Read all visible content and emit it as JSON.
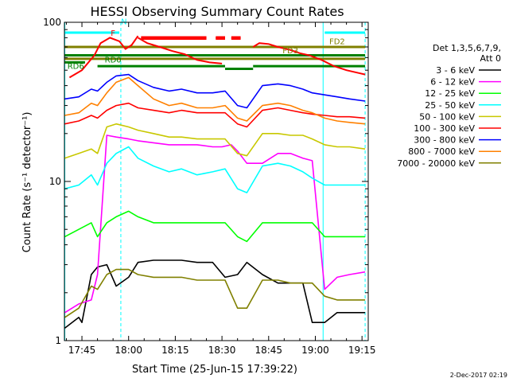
{
  "chart_data": {
    "type": "line",
    "title": "HESSI Observing Summary Count Rates",
    "xlabel": "Start Time (25-Jun-15 17:39:22)",
    "ylabel": "Count Rate (s⁻¹ detector⁻¹)",
    "yscale": "log",
    "ylim": [
      1,
      100
    ],
    "xlim_minutes_since_1730": [
      9.37,
      107
    ],
    "x_ticks": [
      {
        "label": "17:45",
        "minutes_since_1730": 15
      },
      {
        "label": "18:00",
        "minutes_since_1730": 30
      },
      {
        "label": "18:15",
        "minutes_since_1730": 45
      },
      {
        "label": "18:30",
        "minutes_since_1730": 60
      },
      {
        "label": "18:45",
        "minutes_since_1730": 75
      },
      {
        "label": "19:00",
        "minutes_since_1730": 90
      },
      {
        "label": "19:15",
        "minutes_since_1730": 105
      }
    ],
    "y_ticks": [
      {
        "label": "1",
        "value": 1
      },
      {
        "label": "10",
        "value": 10
      },
      {
        "label": "100",
        "value": 100
      }
    ],
    "legend_position": "right",
    "legend_header": [
      "Det 1,3,5,6,7,9,",
      "Att 0"
    ],
    "series": [
      {
        "name": "3 - 6 keV",
        "color": "#000000",
        "x": [
          9.5,
          14,
          15,
          18,
          20,
          23,
          26,
          30,
          33,
          38,
          43,
          47,
          52,
          57,
          61,
          65,
          68,
          73,
          78,
          82,
          86,
          89,
          93,
          97,
          101,
          106
        ],
        "y": [
          1.2,
          1.4,
          1.3,
          2.6,
          2.9,
          3,
          2.2,
          2.5,
          3.1,
          3.2,
          3.2,
          3.2,
          3.1,
          3.1,
          2.5,
          2.6,
          3.1,
          2.6,
          2.3,
          2.3,
          2.3,
          1.3,
          1.3,
          1.5,
          1.5,
          1.5
        ]
      },
      {
        "name": "6 - 12 keV",
        "color": "#ff00ff",
        "x": [
          9.5,
          14,
          18,
          20,
          23,
          26,
          30,
          33,
          38,
          43,
          47,
          52,
          57,
          60,
          63,
          65,
          68,
          73,
          78,
          82,
          86,
          89,
          93,
          97,
          101,
          106
        ],
        "y": [
          1.5,
          1.7,
          1.8,
          2.6,
          19.5,
          19,
          18.5,
          18,
          17.5,
          17,
          17,
          17,
          16.5,
          16.5,
          17,
          15.5,
          13,
          13,
          15,
          15,
          14,
          13.5,
          2.1,
          2.5,
          2.6,
          2.7
        ]
      },
      {
        "name": "12 - 25 keV",
        "color": "#00ff00",
        "x": [
          9.5,
          14,
          18,
          20,
          23,
          26,
          30,
          33,
          38,
          43,
          47,
          52,
          57,
          61,
          65,
          68,
          73,
          78,
          82,
          86,
          89,
          93,
          97,
          101,
          106
        ],
        "y": [
          4.5,
          5,
          5.5,
          4.5,
          5.5,
          6,
          6.5,
          6,
          5.5,
          5.5,
          5.5,
          5.5,
          5.5,
          5.5,
          4.5,
          4.2,
          5.5,
          5.5,
          5.5,
          5.5,
          5.5,
          4.5,
          4.5,
          4.5,
          4.5
        ]
      },
      {
        "name": "25 - 50 keV",
        "color": "#00ffff",
        "x": [
          9.5,
          14,
          18,
          20,
          23,
          26,
          30,
          33,
          38,
          43,
          47,
          52,
          57,
          61,
          65,
          68,
          73,
          78,
          82,
          86,
          89,
          93,
          97,
          101,
          106
        ],
        "y": [
          9,
          9.5,
          11,
          9.5,
          13,
          15,
          16.5,
          14,
          12.5,
          11.5,
          12,
          11,
          11.5,
          12,
          9,
          8.5,
          12.5,
          13,
          12.5,
          11.5,
          10.5,
          9.5,
          9.5,
          9.5,
          9.5
        ]
      },
      {
        "name": "50 - 100 keV",
        "color": "#c8c800",
        "x": [
          9.5,
          14,
          18,
          20,
          23,
          26,
          30,
          33,
          38,
          43,
          47,
          52,
          57,
          61,
          65,
          68,
          73,
          78,
          82,
          86,
          89,
          93,
          97,
          101,
          106
        ],
        "y": [
          14,
          15,
          16,
          15,
          22,
          23,
          22,
          21,
          20,
          19,
          19,
          18.5,
          18.5,
          18.5,
          15,
          14.5,
          20,
          20,
          19.5,
          19.5,
          18.5,
          17,
          16.5,
          16.5,
          16
        ]
      },
      {
        "name": "100 - 300 keV",
        "color": "#ff0000",
        "x": [
          9.5,
          14,
          18,
          20,
          23,
          26,
          30,
          33,
          38,
          43,
          47,
          52,
          57,
          61,
          65,
          68,
          73,
          78,
          82,
          86,
          89,
          93,
          97,
          101,
          106
        ],
        "y": [
          23,
          24,
          26,
          25,
          28,
          30,
          31,
          29,
          28,
          27,
          28,
          27,
          27,
          27,
          23,
          22,
          28,
          29,
          28,
          27,
          26.5,
          26,
          25.5,
          25.5,
          25
        ]
      },
      {
        "name": "300 - 800 keV",
        "color": "#0000ff",
        "x": [
          9.5,
          14,
          18,
          20,
          23,
          26,
          30,
          33,
          38,
          43,
          47,
          52,
          57,
          61,
          65,
          68,
          73,
          78,
          82,
          86,
          89,
          93,
          97,
          101,
          106
        ],
        "y": [
          33,
          34,
          38,
          37,
          42,
          46,
          47,
          43,
          39,
          37,
          38,
          36,
          36,
          37,
          30,
          29,
          40,
          41,
          40,
          38,
          36,
          35,
          34,
          33,
          32
        ]
      },
      {
        "name": "800 - 7000 keV",
        "color": "#ff8000",
        "x": [
          9.5,
          14,
          18,
          20,
          23,
          26,
          30,
          33,
          38,
          43,
          47,
          52,
          57,
          61,
          65,
          68,
          73,
          78,
          82,
          86,
          89,
          93,
          97,
          101,
          106
        ],
        "y": [
          26,
          27,
          31,
          30,
          36,
          42,
          45,
          40,
          33,
          30,
          31,
          29,
          29,
          30,
          25,
          24,
          30,
          31,
          30,
          28,
          27,
          25,
          24,
          23.5,
          23
        ]
      },
      {
        "name": "7000 - 20000 keV",
        "color": "#808000",
        "x": [
          9.5,
          14,
          18,
          20,
          23,
          26,
          30,
          33,
          38,
          43,
          47,
          52,
          57,
          61,
          65,
          68,
          73,
          78,
          82,
          86,
          89,
          93,
          97,
          101,
          106
        ],
        "y": [
          1.4,
          1.6,
          2.2,
          2.1,
          2.6,
          2.8,
          2.8,
          2.6,
          2.5,
          2.5,
          2.5,
          2.4,
          2.4,
          2.4,
          1.6,
          1.6,
          2.4,
          2.4,
          2.3,
          2.3,
          2.3,
          1.9,
          1.8,
          1.8,
          1.8
        ]
      }
    ],
    "flare_trace": {
      "color": "#ff0000",
      "segments": [
        {
          "x": [
            11,
            15,
            19,
            21,
            24,
            27,
            29,
            31,
            33
          ],
          "y": [
            45,
            50,
            62,
            74,
            80,
            76,
            68,
            72,
            82
          ]
        },
        {
          "x": [
            33,
            36,
            40,
            44,
            48,
            52,
            56,
            60
          ],
          "y": [
            80,
            74,
            70,
            66,
            63,
            58,
            56,
            55
          ]
        },
        {
          "x": [
            70,
            72,
            75,
            78,
            82,
            85,
            88,
            92,
            96,
            100,
            104,
            106
          ],
          "y": [
            70,
            74,
            73,
            70,
            67,
            64,
            62,
            58,
            53,
            50,
            48,
            47
          ]
        }
      ]
    },
    "flag_bars": [
      {
        "label": "N",
        "color": "#00ffff",
        "x": [
          9.5,
          27
        ]
      },
      {
        "label": "N",
        "color": "#00ffff",
        "x": [
          93,
          106
        ]
      },
      {
        "label": "F",
        "color": "#ff0000",
        "x": [
          34,
          55
        ]
      },
      {
        "label": "F",
        "color": "#ff0000",
        "x": [
          58,
          61
        ]
      },
      {
        "label": "F",
        "color": "#ff0000",
        "x": [
          63,
          66
        ]
      },
      {
        "label": "FD2",
        "color": "#808000",
        "x": [
          9.5,
          106
        ]
      },
      {
        "label": "FD3",
        "color": "#808000",
        "x": [
          70,
          106
        ]
      },
      {
        "label": "RD0",
        "color": "#008000",
        "x": [
          20,
          106
        ]
      },
      {
        "label": "RD6",
        "color": "#008000",
        "x": [
          9.5,
          16
        ]
      }
    ],
    "flag_labels": [
      {
        "text": "N",
        "color": "#00ffff",
        "x": 28.5,
        "y": 97
      },
      {
        "text": "F",
        "color": "#ff0000",
        "x": 25,
        "y": 82
      },
      {
        "text": "FD2",
        "color": "#808000",
        "x": 97,
        "y": 73
      },
      {
        "text": "FD3",
        "color": "#808000",
        "x": 82,
        "y": 64
      },
      {
        "text": "RD0",
        "color": "#008000",
        "x": 25,
        "y": 56
      },
      {
        "text": "RD6",
        "color": "#008000",
        "x": 13,
        "y": 51
      }
    ],
    "level_lines": [
      {
        "color": "#ff0000",
        "x": [
          34,
          55
        ],
        "y": 79
      },
      {
        "color": "#ff0000",
        "x": [
          58,
          61
        ],
        "y": 79
      },
      {
        "color": "#ff0000",
        "x": [
          63,
          66
        ],
        "y": 79
      },
      {
        "color": "#808000",
        "x": [
          9.5,
          106
        ],
        "y": 70
      },
      {
        "color": "#808000",
        "x": [
          9.5,
          106
        ],
        "y": 59
      },
      {
        "color": "#008000",
        "x": [
          9.5,
          106
        ],
        "y": 62
      },
      {
        "color": "#008000",
        "x": [
          9.5,
          16
        ],
        "y": 56
      },
      {
        "color": "#008000",
        "x": [
          20,
          61
        ],
        "y": 53
      },
      {
        "color": "#008000",
        "x": [
          61,
          70
        ],
        "y": 51
      },
      {
        "color": "#008000",
        "x": [
          70,
          106
        ],
        "y": 53
      }
    ],
    "vertical_markers": [
      {
        "color": "#00ffff",
        "style": "dashed",
        "x": 27.5
      },
      {
        "color": "#00ffff",
        "style": "solid",
        "x": 92.5
      },
      {
        "color": "#00ffff",
        "style": "dashed",
        "x": 106
      },
      {
        "color": "#00ffff",
        "style": "solid",
        "x": 9.5
      }
    ]
  },
  "footer": {
    "timestamp": "2-Dec-2017 02:19"
  }
}
